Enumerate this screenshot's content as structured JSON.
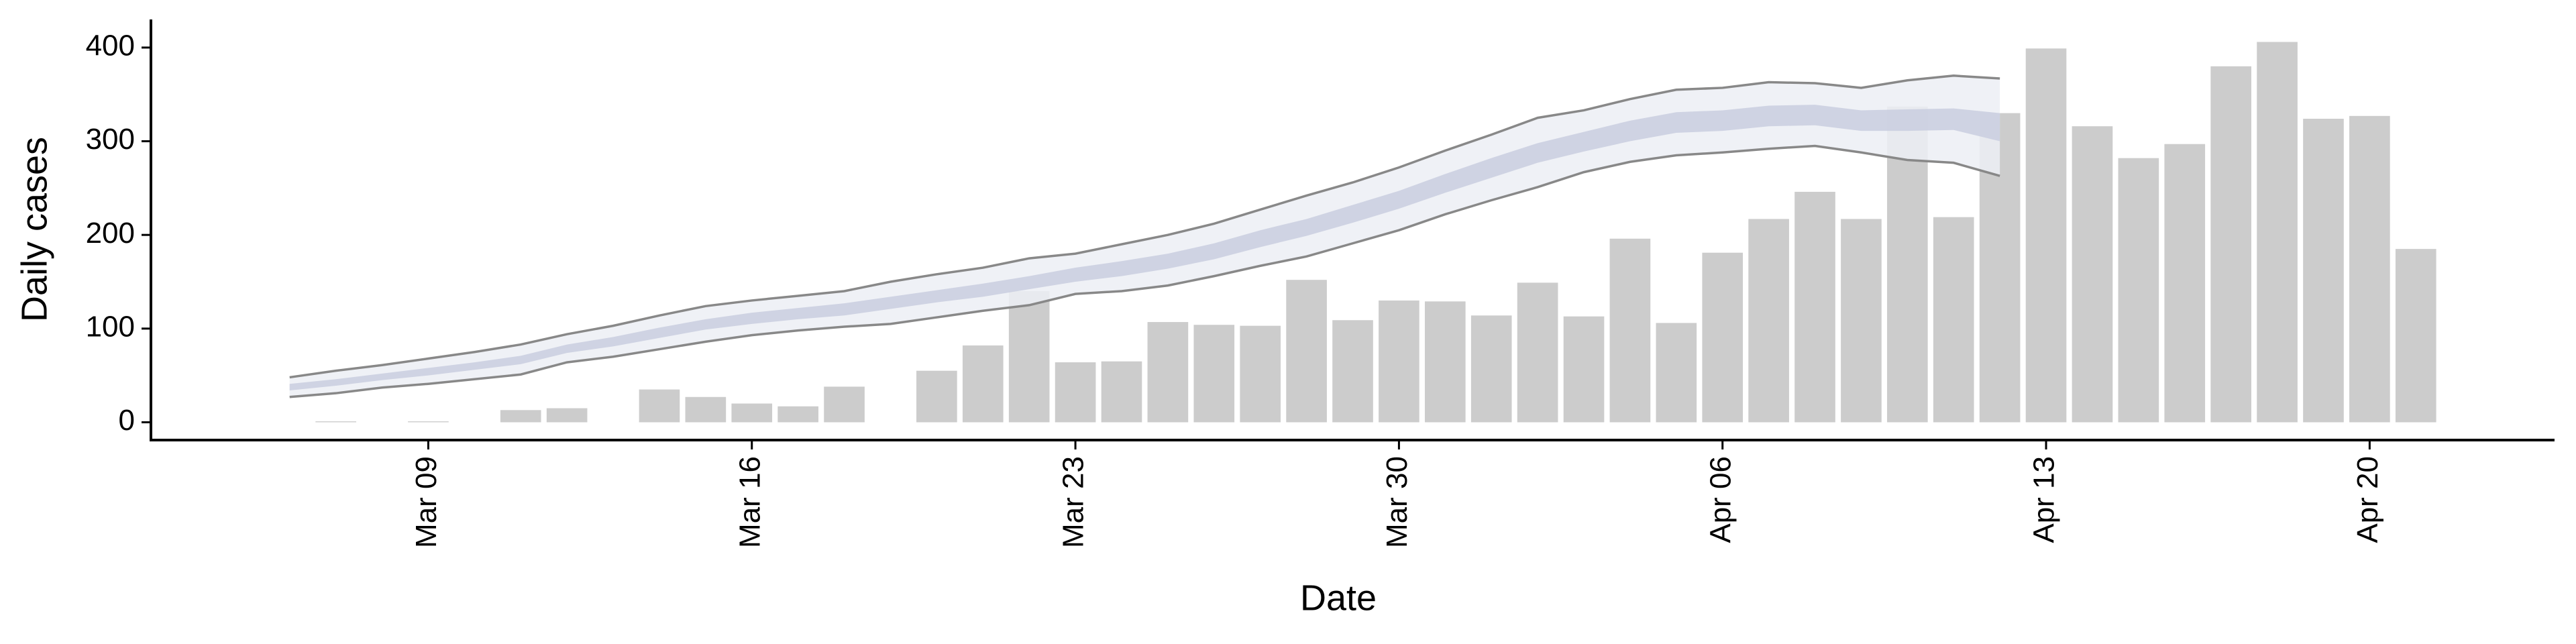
{
  "chart_data": {
    "type": "bar",
    "xlabel": "Date",
    "ylabel": "Daily cases",
    "x": [
      "Mar 06",
      "Mar 07",
      "Mar 08",
      "Mar 09",
      "Mar 10",
      "Mar 11",
      "Mar 12",
      "Mar 13",
      "Mar 14",
      "Mar 15",
      "Mar 16",
      "Mar 17",
      "Mar 18",
      "Mar 19",
      "Mar 20",
      "Mar 21",
      "Mar 22",
      "Mar 23",
      "Mar 24",
      "Mar 25",
      "Mar 26",
      "Mar 27",
      "Mar 28",
      "Mar 29",
      "Mar 30",
      "Mar 31",
      "Apr 01",
      "Apr 02",
      "Apr 03",
      "Apr 04",
      "Apr 05",
      "Apr 06",
      "Apr 07",
      "Apr 08",
      "Apr 09",
      "Apr 10",
      "Apr 11",
      "Apr 12",
      "Apr 13",
      "Apr 14",
      "Apr 15",
      "Apr 16",
      "Apr 17",
      "Apr 18",
      "Apr 19",
      "Apr 20",
      "Apr 21"
    ],
    "values": [
      0,
      1,
      0,
      1,
      0,
      13,
      15,
      0,
      35,
      27,
      20,
      17,
      38,
      0,
      55,
      82,
      140,
      64,
      65,
      107,
      104,
      103,
      152,
      109,
      130,
      129,
      114,
      149,
      113,
      196,
      106,
      181,
      217,
      246,
      217,
      337,
      219,
      330,
      399,
      316,
      282,
      297,
      380,
      406,
      324,
      327,
      185
    ],
    "color": "#cccccc",
    "intervals": [
      {
        "fill": "#eceef5",
        "line_color": "#888888",
        "lower": [
          27,
          31,
          37,
          41,
          46,
          51,
          64,
          70,
          78,
          86,
          93,
          98,
          102,
          105,
          112,
          119,
          125,
          137,
          140,
          146,
          156,
          167,
          177,
          191,
          205,
          222,
          237,
          251,
          267,
          278,
          285,
          288,
          292,
          295,
          288,
          280,
          277,
          263,
          null,
          null,
          null,
          null,
          null,
          null,
          null,
          null,
          null
        ],
        "upper": [
          48,
          55,
          61,
          68,
          75,
          83,
          94,
          103,
          114,
          124,
          130,
          135,
          140,
          150,
          158,
          165,
          175,
          180,
          190,
          200,
          212,
          227,
          242,
          256,
          272,
          290,
          307,
          325,
          333,
          345,
          355,
          357,
          363,
          362,
          357,
          365,
          370,
          367,
          null,
          null,
          null,
          null,
          null,
          null,
          null,
          null,
          null
        ]
      },
      {
        "fill": "#c9cedf",
        "lower": [
          34,
          39,
          45,
          50,
          56,
          62,
          74,
          81,
          90,
          99,
          105,
          110,
          114,
          121,
          128,
          134,
          142,
          150,
          156,
          164,
          174,
          187,
          199,
          213,
          228,
          245,
          261,
          277,
          289,
          300,
          309,
          311,
          316,
          317,
          311,
          311,
          312,
          300,
          null,
          null,
          null,
          null,
          null,
          null,
          null,
          null,
          null
        ],
        "upper": [
          41,
          46,
          52,
          58,
          64,
          71,
          83,
          91,
          101,
          110,
          117,
          122,
          127,
          134,
          141,
          148,
          156,
          165,
          172,
          180,
          191,
          205,
          217,
          232,
          247,
          265,
          282,
          298,
          310,
          322,
          331,
          333,
          338,
          339,
          333,
          334,
          335,
          330,
          null,
          null,
          null,
          null,
          null,
          null,
          null,
          null,
          null
        ]
      }
    ],
    "xlim": [
      "Mar 03",
      "Apr 24"
    ],
    "xticks": [
      "Mar 09",
      "Mar 16",
      "Mar 23",
      "Mar 30",
      "Apr 06",
      "Apr 13",
      "Apr 20"
    ],
    "ylim": [
      -19,
      430
    ],
    "yticks": [
      0,
      100,
      200,
      300,
      400
    ]
  }
}
